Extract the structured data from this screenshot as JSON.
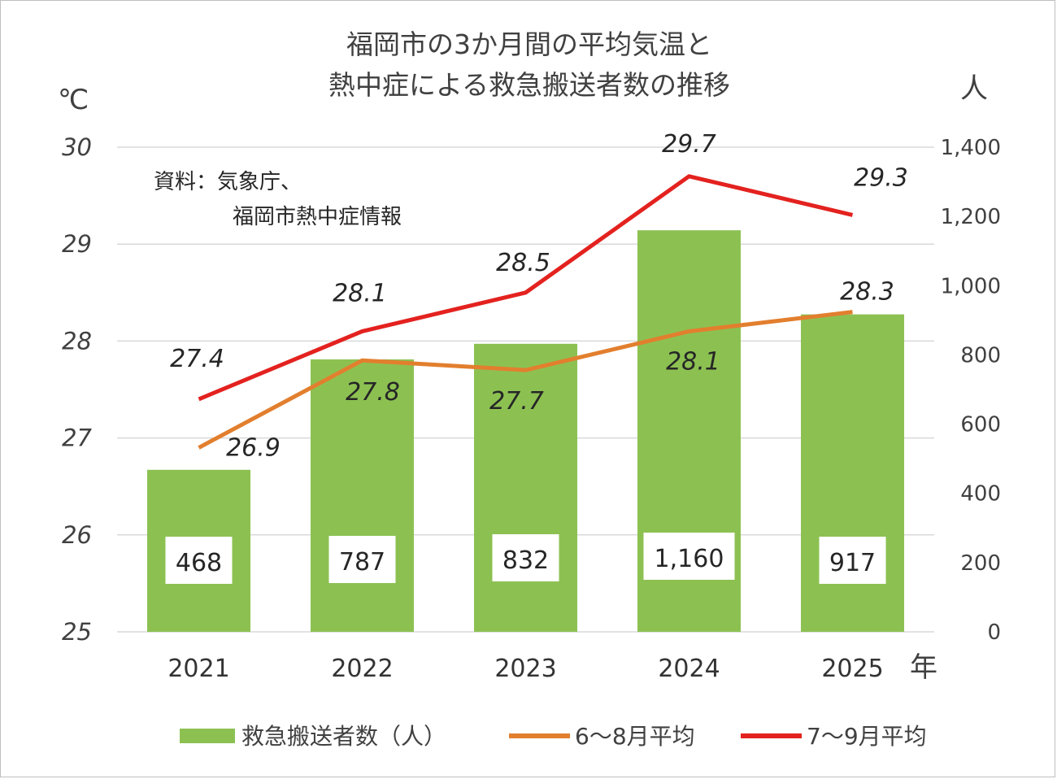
{
  "chart_data": {
    "type": "bar+line",
    "title": [
      "福岡市の3か月間の平均気温と",
      "熱中症による救急搬送者数の推移"
    ],
    "y_left_unit": "℃",
    "y_right_unit": "人",
    "x_unit": "年",
    "source": [
      "資料：気象庁、",
      "福岡市熱中症情報"
    ],
    "categories": [
      "2021",
      "2022",
      "2023",
      "2024",
      "2025"
    ],
    "ylim_left": [
      25,
      30
    ],
    "yticks_left": [
      "25",
      "26",
      "27",
      "28",
      "29",
      "30"
    ],
    "ylim_right": [
      0,
      1400
    ],
    "yticks_right": [
      "0",
      "200",
      "400",
      "600",
      "800",
      "1,000",
      "1,200",
      "1,400"
    ],
    "grid": true,
    "legend_position": "bottom",
    "series": [
      {
        "name": "救急搬送者数（人）",
        "type": "bar",
        "axis": "right",
        "color": "#8cc152",
        "values": [
          468,
          787,
          832,
          1160,
          917
        ],
        "labels": [
          "468",
          "787",
          "832",
          "1,160",
          "917"
        ]
      },
      {
        "name": "6～8月平均",
        "type": "line",
        "axis": "left",
        "color": "#e27f2e",
        "values": [
          26.9,
          27.8,
          27.7,
          28.1,
          28.3
        ],
        "labels": [
          "26.9",
          "27.8",
          "27.7",
          "28.1",
          "28.3"
        ]
      },
      {
        "name": "7～9月平均",
        "type": "line",
        "axis": "left",
        "color": "#e3221f",
        "values": [
          27.4,
          28.1,
          28.5,
          29.7,
          29.3
        ],
        "labels": [
          "27.4",
          "28.1",
          "28.5",
          "29.7",
          "29.3"
        ]
      }
    ]
  }
}
